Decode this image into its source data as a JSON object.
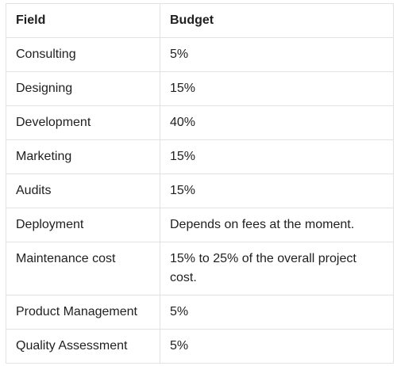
{
  "table": {
    "headers": [
      "Field",
      "Budget"
    ],
    "rows": [
      {
        "field": "Consulting",
        "budget": "5%"
      },
      {
        "field": "Designing",
        "budget": "15%"
      },
      {
        "field": "Development",
        "budget": "40%"
      },
      {
        "field": "Marketing",
        "budget": "15%"
      },
      {
        "field": "Audits",
        "budget": "15%"
      },
      {
        "field": "Deployment",
        "budget": "Depends on fees at the moment."
      },
      {
        "field": "Maintenance cost",
        "budget": "15% to 25% of the overall project cost."
      },
      {
        "field": "Product Management",
        "budget": "5%"
      },
      {
        "field": "Quality Assessment",
        "budget": "5%"
      }
    ]
  }
}
